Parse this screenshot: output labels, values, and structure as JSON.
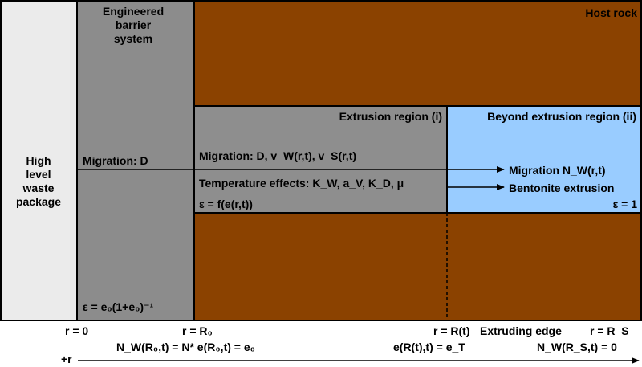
{
  "colors": {
    "waste_package": "#ebebeb",
    "barrier": "#8c8c8c",
    "host_rock": "#8b4200",
    "extrusion": "#8e8e8e",
    "beyond": "#99ccff",
    "line": "#000000"
  },
  "labels": {
    "host_rock": "Host rock",
    "ebs_line1": "Engineered",
    "ebs_line2": "barrier",
    "ebs_line3": "system",
    "hlw_line1": "High",
    "hlw_line2": "level",
    "hlw_line3": "waste",
    "hlw_line4": "package",
    "migration_d": "Migration: D",
    "eps_barrier": "ε = e₀(1+e₀)⁻¹",
    "extrusion_region": "Extrusion region (i)",
    "beyond_region": "Beyond extrusion region (ii)",
    "migration_ext": "Migration: D, v_W(r,t), v_S(r,t)",
    "temp_effects": "Temperature effects: K_W, a_V, K_D, μ",
    "eps_ext": "ε = f(e(r,t))",
    "migration_nw": "Migration N_W(r,t)",
    "bentonite_extrusion": "Bentonite extrusion",
    "eps_beyond": "ε = 1"
  },
  "axis": {
    "r0": "r = 0",
    "rR0": "r = R₀",
    "rRt": "r = R(t)",
    "extruding_edge": "Extruding edge",
    "rRS": "r = R_S",
    "bc_inner": "N_W(R₀,t) = N* e(R₀,t) = e₀",
    "bc_front": "e(R(t),t) = e_T",
    "bc_outer": "N_W(R_S,t) = 0",
    "direction": "+r"
  }
}
